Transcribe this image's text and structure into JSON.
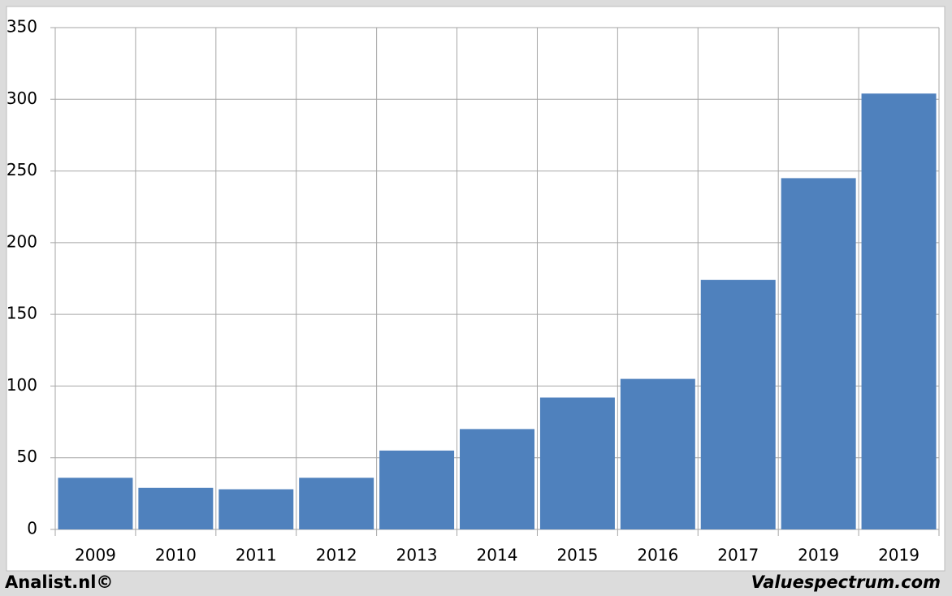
{
  "chart_data": {
    "type": "bar",
    "categories": [
      "2009",
      "2010",
      "2011",
      "2012",
      "2013",
      "2014",
      "2015",
      "2016",
      "2017",
      "2019",
      "2019"
    ],
    "values": [
      36,
      29,
      28,
      36,
      55,
      70,
      92,
      105,
      174,
      245,
      304
    ],
    "color": "#4f81bd",
    "ylim": [
      0,
      350
    ],
    "yticks": [
      0,
      50,
      100,
      150,
      200,
      250,
      300,
      350
    ],
    "grid": true,
    "footer_left": "Analist.nl©",
    "footer_right": "Valuespectrum.com"
  }
}
